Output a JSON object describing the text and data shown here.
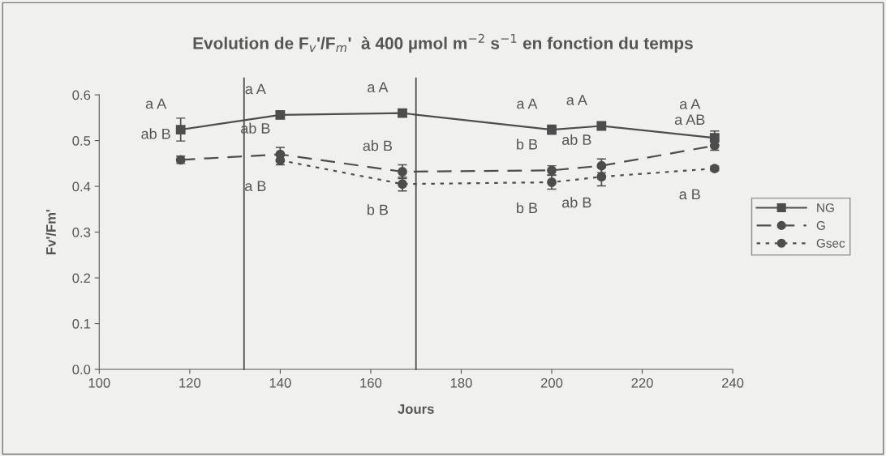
{
  "chart_data": {
    "type": "line",
    "title": "Evolution de F$_{v}$'/F$_{m}$'  à 400 µmol m$^{−2}$ s$^{−1}$ en fonction du temps",
    "xlabel": "Jours",
    "ylabel": "Fv'/Fm'",
    "x": [
      118,
      140,
      167,
      200,
      211,
      236
    ],
    "series": [
      {
        "name": "NG",
        "color": "#4d4d4d",
        "marker": "square",
        "line_style": "solid",
        "values": [
          0.524,
          0.556,
          0.56,
          0.524,
          0.532,
          0.506
        ],
        "errors": [
          0.025,
          0.008,
          0.008,
          0.01,
          0.008,
          0.015
        ]
      },
      {
        "name": "G",
        "color": "#4d4d4d",
        "marker": "circle",
        "line_style": "dashed",
        "values": [
          0.458,
          0.47,
          0.432,
          0.435,
          0.445,
          0.489
        ],
        "errors": [
          0.008,
          0.015,
          0.015,
          0.01,
          0.015,
          0.01
        ]
      },
      {
        "name": "Gsec",
        "color": "#4d4d4d",
        "marker": "circle",
        "line_style": "dotted",
        "values": [
          null,
          0.457,
          0.405,
          0.409,
          0.421,
          0.439
        ],
        "errors": [
          null,
          0.01,
          0.015,
          0.015,
          0.02,
          0.005
        ]
      }
    ],
    "xlim": [
      100,
      240
    ],
    "xticks": [
      100,
      120,
      140,
      160,
      180,
      200,
      220,
      240
    ],
    "ylim": [
      0,
      0.6
    ],
    "yticks": [
      {
        "value": 0,
        "label": "0.0"
      },
      0.1,
      0.2,
      0.3,
      0.4,
      0.5,
      0.6
    ],
    "ref_lines": [
      {
        "axis": "x",
        "value": 132,
        "color": "#4d4d4d"
      },
      {
        "axis": "x",
        "value": 170,
        "color": "#4d4d4d"
      }
    ],
    "grid": false,
    "legend": "right",
    "annotations": [
      {
        "text": "a A",
        "x": 118,
        "y": 0.524
      },
      {
        "text": "ab B",
        "x": 118,
        "y": 0.458
      },
      {
        "text": "a A",
        "x": 140,
        "y": 0.556
      },
      {
        "text": "ab B",
        "x": 140,
        "y": 0.47
      },
      {
        "text": "a B",
        "x": 140,
        "y": 0.457
      },
      {
        "text": "a A",
        "x": 167,
        "y": 0.56
      },
      {
        "text": "ab B",
        "x": 167,
        "y": 0.432
      },
      {
        "text": "b B",
        "x": 167,
        "y": 0.405
      },
      {
        "text": "a A",
        "x": 200,
        "y": 0.524
      },
      {
        "text": "b B",
        "x": 200,
        "y": 0.435
      },
      {
        "text": "b B",
        "x": 200,
        "y": 0.409
      },
      {
        "text": "a A",
        "x": 211,
        "y": 0.532
      },
      {
        "text": "ab B",
        "x": 211,
        "y": 0.445
      },
      {
        "text": "ab B",
        "x": 211,
        "y": 0.421
      },
      {
        "text": "a AB",
        "x": 236,
        "y": 0.489
      },
      {
        "text": "a A",
        "x": 236,
        "y": 0.506
      },
      {
        "text": "a B",
        "x": 236,
        "y": 0.439
      }
    ]
  }
}
